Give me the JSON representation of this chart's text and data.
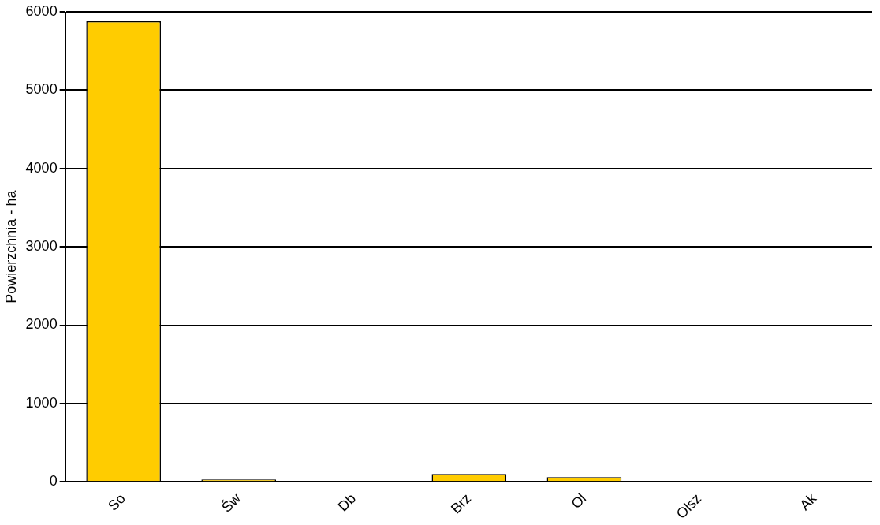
{
  "chart_data": {
    "type": "bar",
    "ylabel": "Powierzchnia - ha",
    "categories": [
      "So",
      "Św",
      "Db",
      "Brz",
      "Ol",
      "Olsz",
      "Ak"
    ],
    "values": [
      5880,
      30,
      null,
      100,
      60,
      null,
      null
    ],
    "color": "#ffcc00",
    "ylim": [
      0,
      6000
    ],
    "yticks": [
      0,
      1000,
      2000,
      3000,
      4000,
      5000,
      6000
    ],
    "grid": "y",
    "legend": false
  }
}
